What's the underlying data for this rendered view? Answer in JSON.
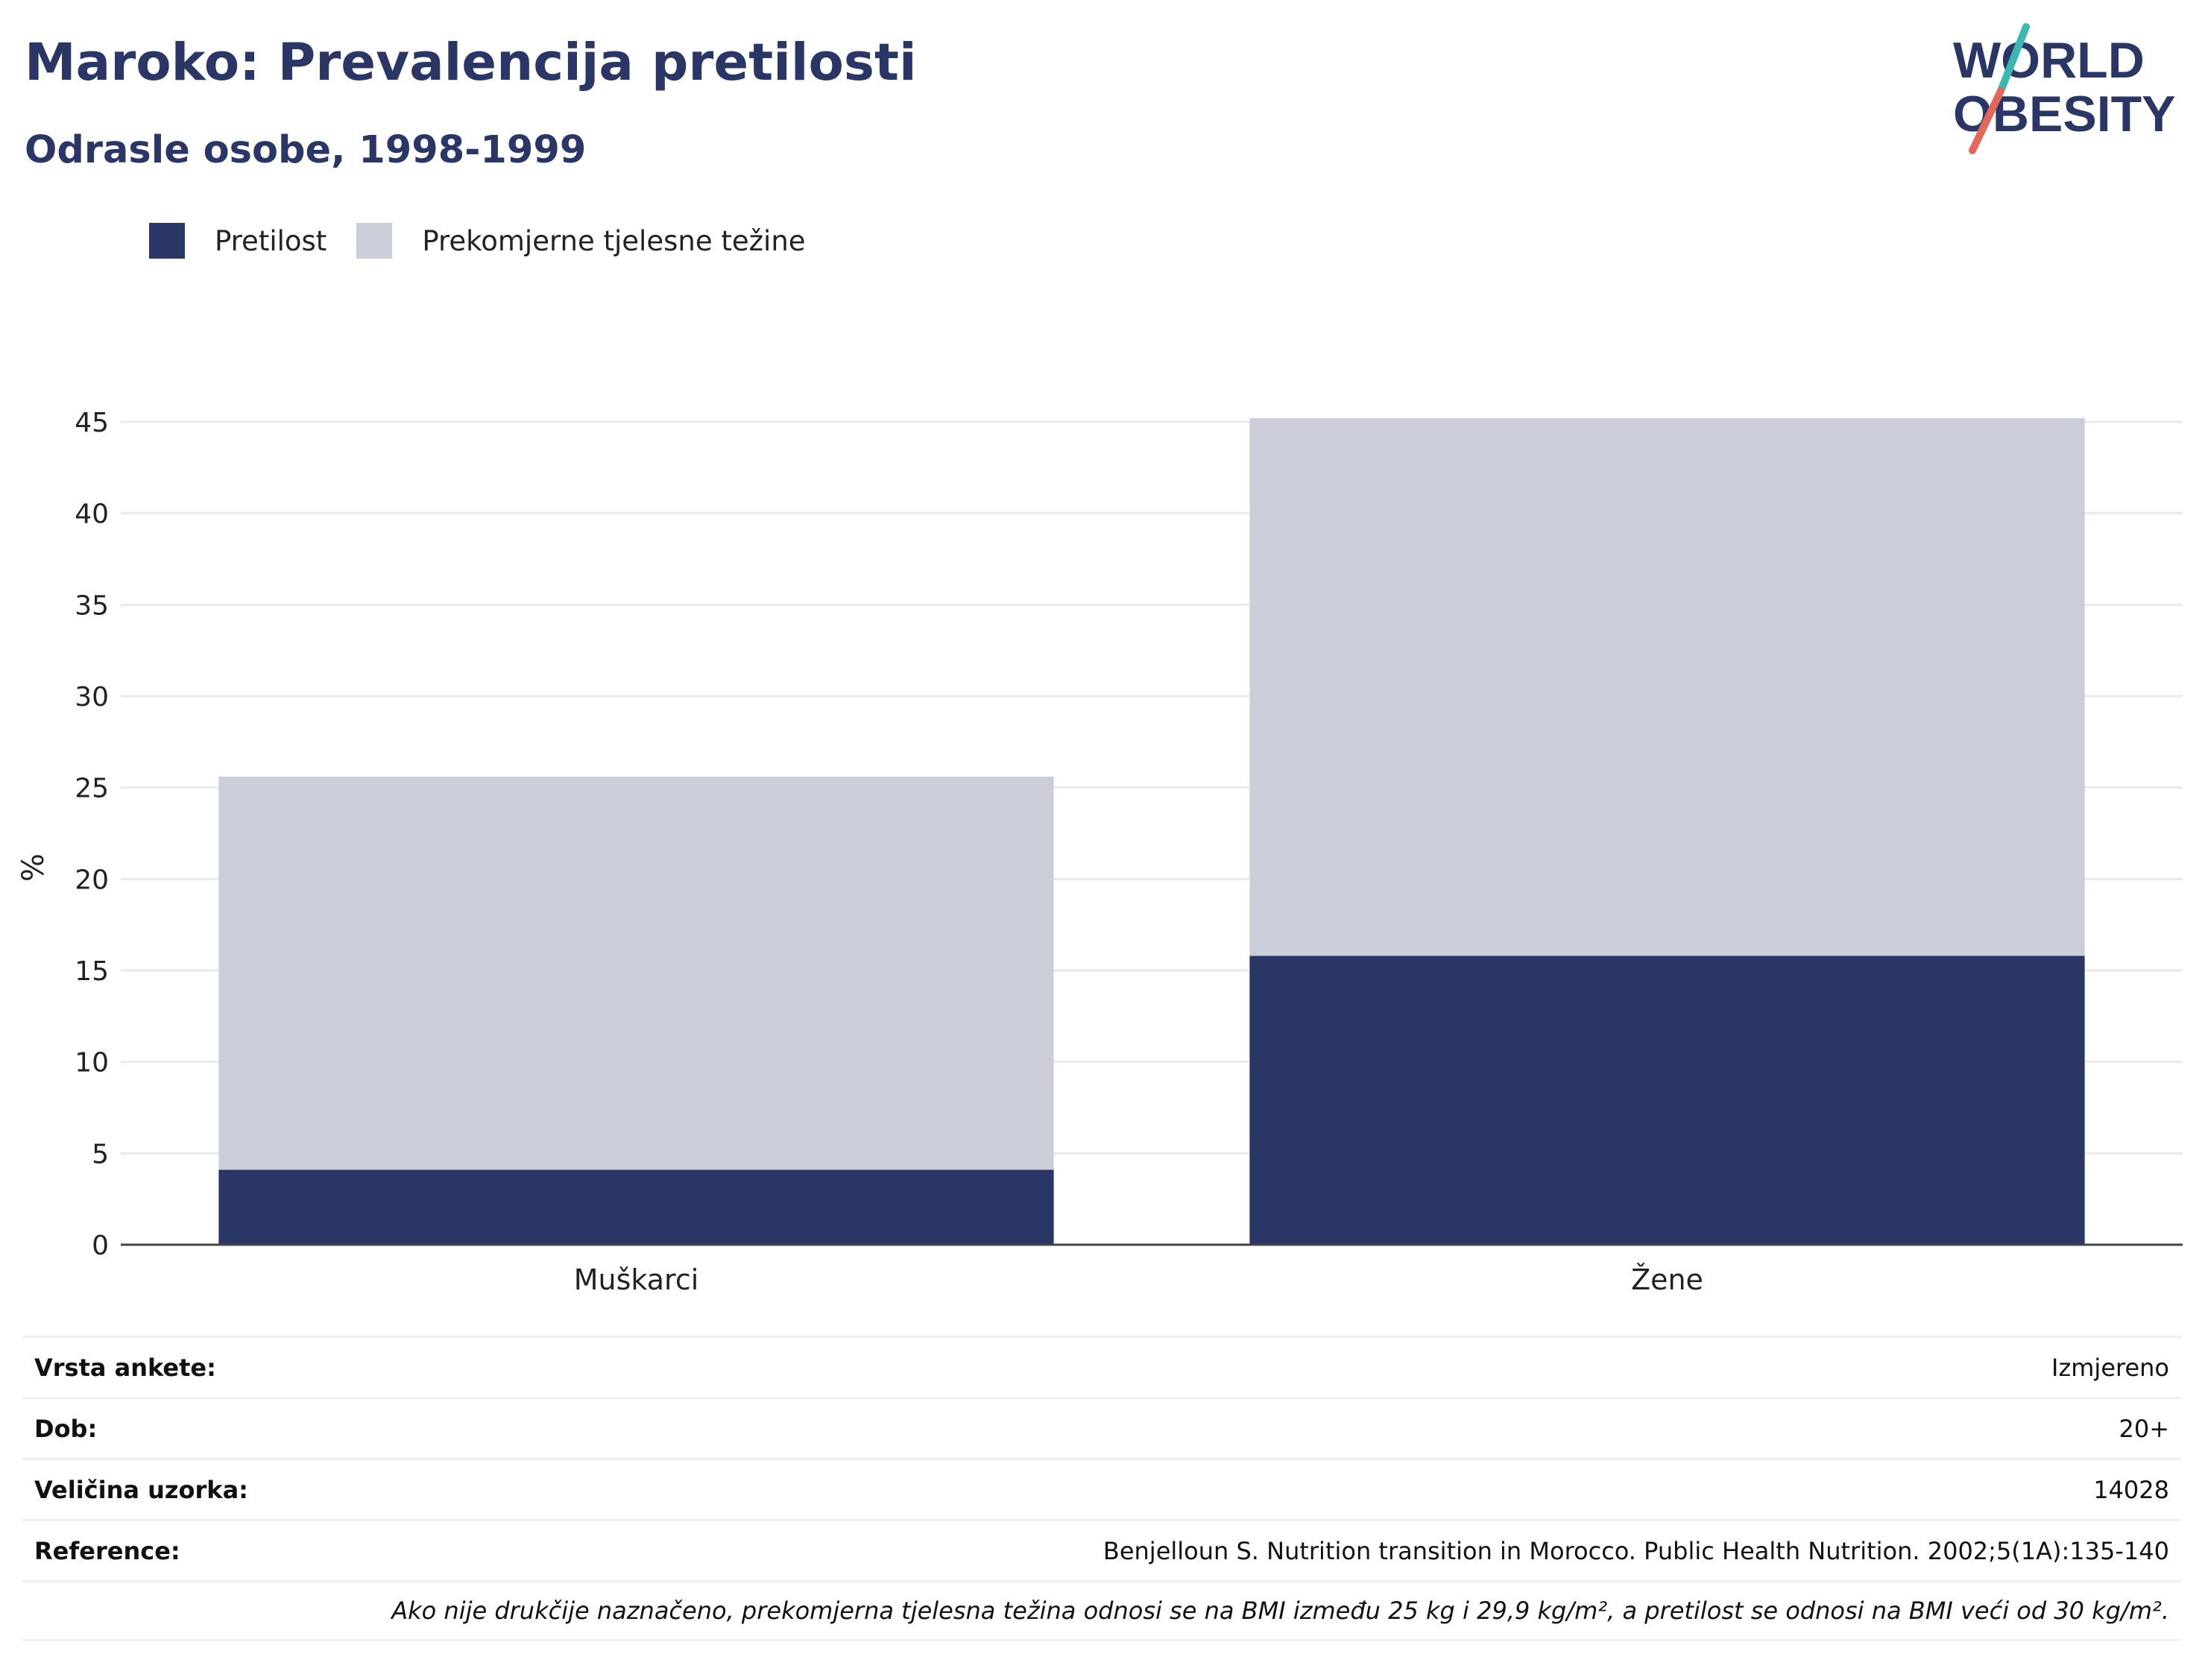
{
  "title": "Maroko: Prevalencija pretilosti",
  "subtitle": "Odrasle osobe, 1998-1999",
  "logo": {
    "line1": "WORLD",
    "line2": "OBESITY"
  },
  "colors": {
    "obesity": "#2a3665",
    "overweight": "#cbcdd8",
    "title": "#2a3665",
    "logo_teal": "#3bb8b0",
    "logo_red": "#e5675a"
  },
  "chart_data": {
    "type": "bar",
    "stacked": true,
    "categories": [
      "Muškarci",
      "Žene"
    ],
    "series": [
      {
        "name": "Pretilost",
        "values": [
          4.1,
          15.8
        ]
      },
      {
        "name": "Prekomjerne tjelesne težine",
        "values": [
          21.5,
          29.4
        ]
      }
    ],
    "ylabel": "%",
    "ylim": [
      0,
      45
    ],
    "yticks": [
      0,
      5,
      10,
      15,
      20,
      25,
      30,
      35,
      40,
      45
    ],
    "grid": true,
    "legend": "top-left"
  },
  "info": {
    "rows": [
      {
        "label": "Vrsta ankete:",
        "value": "Izmjereno"
      },
      {
        "label": "Dob:",
        "value": "20+"
      },
      {
        "label": "Veličina uzorka:",
        "value": "14028"
      },
      {
        "label": "Reference:",
        "value": "Benjelloun S. Nutrition transition in Morocco. Public Health Nutrition. 2002;5(1A):135-140"
      }
    ],
    "note": "Ako nije drukčije naznačeno, prekomjerna tjelesna težina odnosi se na BMI između 25 kg i 29,9 kg/m², a pretilost se odnosi na BMI veći od 30 kg/m²."
  }
}
